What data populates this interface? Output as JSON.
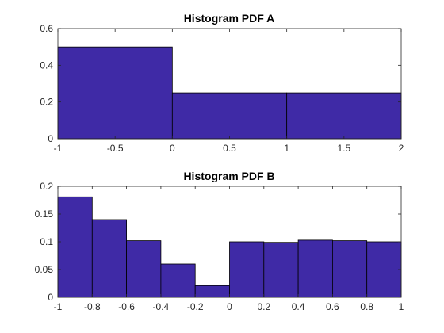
{
  "chart_data": [
    {
      "type": "bar",
      "title": "Histogram PDF A",
      "xlabel": "",
      "ylabel": "",
      "xlim": [
        -1,
        2
      ],
      "ylim": [
        0,
        0.6
      ],
      "xticks": [
        -1,
        -0.5,
        0,
        0.5,
        1,
        1.5,
        2
      ],
      "xtick_labels": [
        "-1",
        "-0.5",
        "0",
        "0.5",
        "1",
        "1.5",
        "2"
      ],
      "yticks": [
        0,
        0.2,
        0.4,
        0.6
      ],
      "ytick_labels": [
        "0",
        "0.2",
        "0.4",
        "0.6"
      ],
      "bins": [
        {
          "x0": -1,
          "x1": 0,
          "value": 0.5
        },
        {
          "x0": 0,
          "x1": 1,
          "value": 0.25
        },
        {
          "x0": 1,
          "x1": 2,
          "value": 0.25
        }
      ],
      "bar_color": "#3f2aa6",
      "grid": false
    },
    {
      "type": "bar",
      "title": "Histogram PDF B",
      "xlabel": "",
      "ylabel": "",
      "xlim": [
        -1,
        1
      ],
      "ylim": [
        0,
        0.2
      ],
      "xticks": [
        -1,
        -0.8,
        -0.6,
        -0.4,
        -0.2,
        0,
        0.2,
        0.4,
        0.6,
        0.8,
        1
      ],
      "xtick_labels": [
        "-1",
        "-0.8",
        "-0.6",
        "-0.4",
        "-0.2",
        "0",
        "0.2",
        "0.4",
        "0.6",
        "0.8",
        "1"
      ],
      "yticks": [
        0,
        0.05,
        0.1,
        0.15,
        0.2
      ],
      "ytick_labels": [
        "0",
        "0.05",
        "0.1",
        "0.15",
        "0.2"
      ],
      "bins": [
        {
          "x0": -1,
          "x1": -0.8,
          "value": 0.181
        },
        {
          "x0": -0.8,
          "x1": -0.6,
          "value": 0.14
        },
        {
          "x0": -0.6,
          "x1": -0.4,
          "value": 0.102
        },
        {
          "x0": -0.4,
          "x1": -0.2,
          "value": 0.06
        },
        {
          "x0": -0.2,
          "x1": 0,
          "value": 0.021
        },
        {
          "x0": 0,
          "x1": 0.2,
          "value": 0.1
        },
        {
          "x0": 0.2,
          "x1": 0.4,
          "value": 0.099
        },
        {
          "x0": 0.4,
          "x1": 0.6,
          "value": 0.103
        },
        {
          "x0": 0.6,
          "x1": 0.8,
          "value": 0.102
        },
        {
          "x0": 0.8,
          "x1": 1,
          "value": 0.1
        }
      ],
      "bar_color": "#3f2aa6",
      "grid": false
    }
  ]
}
